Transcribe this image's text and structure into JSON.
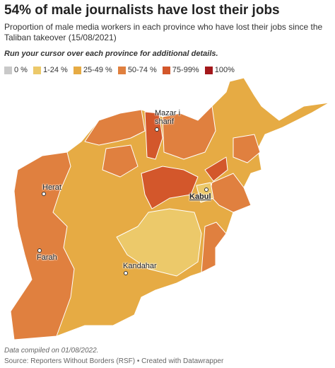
{
  "header": {
    "title": "54% of male journalists have lost their jobs",
    "subtitle": "Proportion of male media workers in each province who have lost their jobs since the Taliban takeover (15/08/2021)"
  },
  "instruction": "Run your cursor over each province for additional details.",
  "legend": [
    {
      "label": "0 %",
      "color": "#c9c9c9"
    },
    {
      "label": "1-24 %",
      "color": "#ecc96a"
    },
    {
      "label": "25-49 %",
      "color": "#e6ab44"
    },
    {
      "label": "50-74 %",
      "color": "#e0803f"
    },
    {
      "label": "75-99%",
      "color": "#d3572b"
    },
    {
      "label": "100%",
      "color": "#a3181b"
    }
  ],
  "map": {
    "cities": [
      "Mazar i sharif",
      "Herat",
      "Farah",
      "Kandahar",
      "Kabul"
    ]
  },
  "footer": {
    "note": "Data compiled on 01/08/2022.",
    "source": "Source: Reporters Without Borders (RSF) • Created with Datawrapper"
  }
}
